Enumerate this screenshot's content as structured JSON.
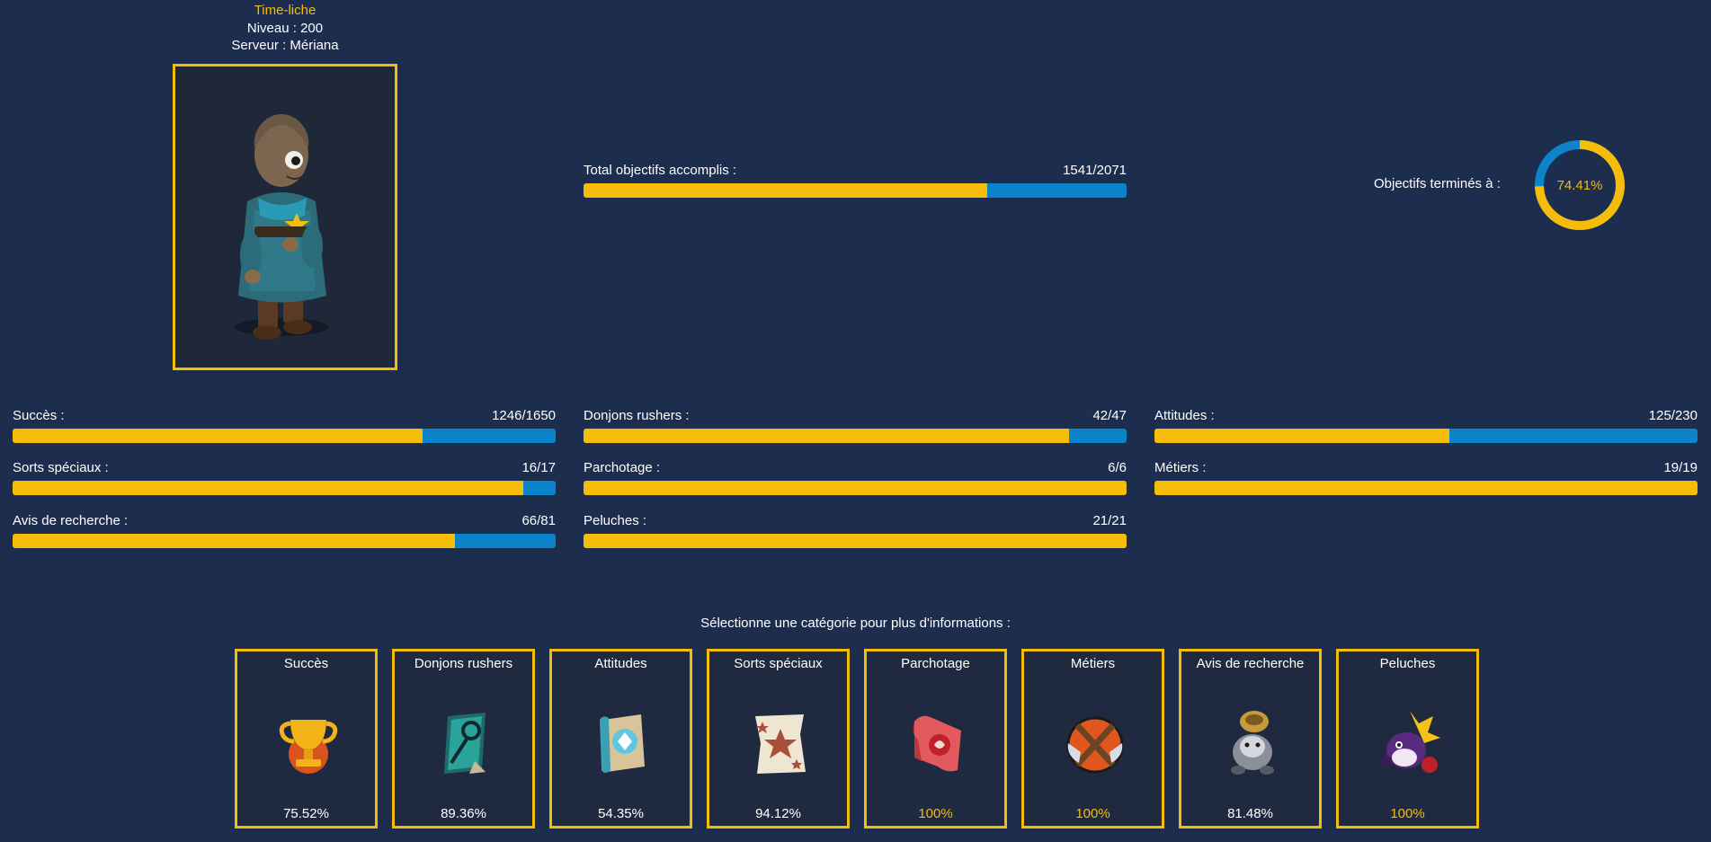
{
  "profile": {
    "name": "Time-liche",
    "level_line": "Niveau : 200",
    "server_line": "Serveur : Mériana"
  },
  "total": {
    "label": "Total objectifs accomplis :",
    "value_text": "1541/2071",
    "done": 1541,
    "max": 2071
  },
  "completion": {
    "label": "Objectifs terminés à :",
    "percent_text": "74.41%",
    "percent": 74.41
  },
  "stats": [
    {
      "label": "Succès :",
      "value_text": "1246/1650",
      "done": 1246,
      "max": 1650
    },
    {
      "label": "Donjons rushers :",
      "value_text": "42/47",
      "done": 42,
      "max": 47
    },
    {
      "label": "Attitudes :",
      "value_text": "125/230",
      "done": 125,
      "max": 230
    },
    {
      "label": "Sorts spéciaux :",
      "value_text": "16/17",
      "done": 16,
      "max": 17
    },
    {
      "label": "Parchotage :",
      "value_text": "6/6",
      "done": 6,
      "max": 6
    },
    {
      "label": "Métiers :",
      "value_text": "19/19",
      "done": 19,
      "max": 19
    },
    {
      "label": "Avis de recherche :",
      "value_text": "66/81",
      "done": 66,
      "max": 81
    },
    {
      "label": "Peluches :",
      "value_text": "21/21",
      "done": 21,
      "max": 21
    }
  ],
  "categories": {
    "prompt": "Sélectionne une catégorie pour plus d'informations :",
    "items": [
      {
        "title": "Succès",
        "percent_text": "75.52%",
        "icon": "trophy-icon"
      },
      {
        "title": "Donjons rushers",
        "percent_text": "89.36%",
        "icon": "dungeon-key-icon"
      },
      {
        "title": "Attitudes",
        "percent_text": "54.35%",
        "icon": "attitude-scroll-icon"
      },
      {
        "title": "Sorts spéciaux",
        "percent_text": "94.12%",
        "icon": "star-scroll-icon"
      },
      {
        "title": "Parchotage",
        "percent_text": "100%",
        "icon": "red-scroll-icon"
      },
      {
        "title": "Métiers",
        "percent_text": "100%",
        "icon": "crossed-tools-icon"
      },
      {
        "title": "Avis de recherche",
        "percent_text": "81.48%",
        "icon": "wanted-creature-icon"
      },
      {
        "title": "Peluches",
        "percent_text": "100%",
        "icon": "plush-icon"
      }
    ]
  },
  "colors": {
    "background": "#1c2d4e",
    "accent": "#f5bc0a",
    "bar_track": "#0b84c9"
  }
}
